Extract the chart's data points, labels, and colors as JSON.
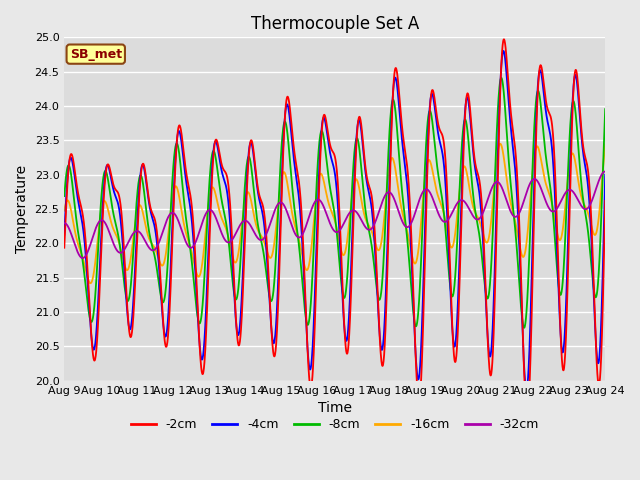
{
  "title": "Thermocouple Set A",
  "xlabel": "Time",
  "ylabel": "Temperature",
  "ylim": [
    20.0,
    25.0
  ],
  "yticks": [
    20.0,
    20.5,
    21.0,
    21.5,
    22.0,
    22.5,
    23.0,
    23.5,
    24.0,
    24.5,
    25.0
  ],
  "xtick_labels": [
    "Aug 9",
    "Aug 10",
    "Aug 11",
    "Aug 12",
    "Aug 13",
    "Aug 14",
    "Aug 15",
    "Aug 16",
    "Aug 17",
    "Aug 18",
    "Aug 19",
    "Aug 20",
    "Aug 21",
    "Aug 22",
    "Aug 23",
    "Aug 24"
  ],
  "series_colors": {
    "-2cm": "#ff0000",
    "-4cm": "#0000ff",
    "-8cm": "#00bb00",
    "-16cm": "#ffaa00",
    "-32cm": "#aa00aa"
  },
  "legend_label": "SB_met",
  "plot_bg": "#dcdcdc",
  "fig_bg": "#e8e8e8",
  "grid_color": "#ffffff",
  "title_fontsize": 12,
  "axis_label_fontsize": 10,
  "tick_fontsize": 8,
  "linewidth": 1.3
}
